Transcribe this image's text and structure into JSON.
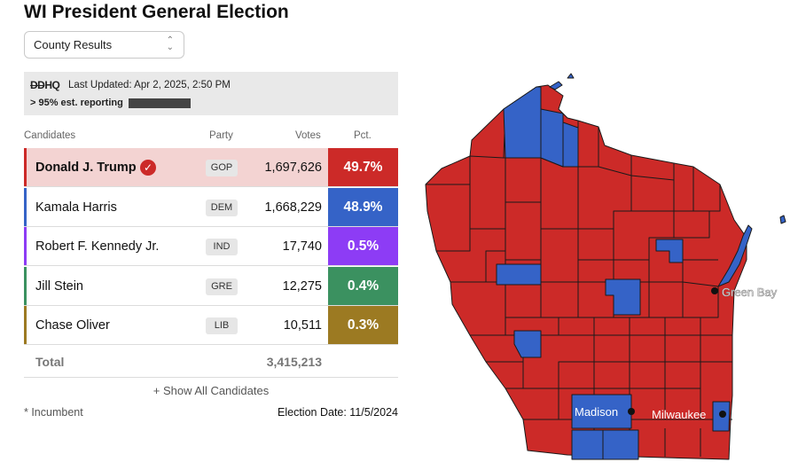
{
  "title": "WI President General Election",
  "view_select": {
    "value": "County Results"
  },
  "banner": {
    "logo": "DDHQ",
    "logo_strike": "DD",
    "logo_rest": "HQ",
    "updated": "Last Updated: Apr 2, 2025, 2:50 PM",
    "reporting": "> 95% est. reporting"
  },
  "table": {
    "headers": {
      "candidates": "Candidates",
      "party": "Party",
      "votes": "Votes",
      "pct": "Pct."
    },
    "rows": [
      {
        "name": "Donald J. Trump",
        "party": "GOP",
        "votes": "1,697,626",
        "pct": "49.7%",
        "color": "#cc2a28",
        "bg": "#f3d3d2",
        "winner": true
      },
      {
        "name": "Kamala Harris",
        "party": "DEM",
        "votes": "1,668,229",
        "pct": "48.9%",
        "color": "#3563c7",
        "bg": "#ffffff",
        "winner": false
      },
      {
        "name": "Robert F. Kennedy Jr.",
        "party": "IND",
        "votes": "17,740",
        "pct": "0.5%",
        "color": "#8d3cf5",
        "bg": "#ffffff",
        "winner": false
      },
      {
        "name": "Jill Stein",
        "party": "GRE",
        "votes": "12,275",
        "pct": "0.4%",
        "color": "#3b9160",
        "bg": "#ffffff",
        "winner": false
      },
      {
        "name": "Chase Oliver",
        "party": "LIB",
        "votes": "10,511",
        "pct": "0.3%",
        "color": "#9c7a22",
        "bg": "#ffffff",
        "winner": false
      }
    ],
    "total_label": "Total",
    "total_votes": "3,415,213"
  },
  "show_all": "+ Show All Candidates",
  "footer": {
    "incumbent": "* Incumbent",
    "election_date": "Election Date: 11/5/2024"
  },
  "map": {
    "colors": {
      "rep": "#cc2a28",
      "dem": "#3563c7"
    },
    "cities": {
      "green_bay": "Green Bay",
      "madison": "Madison",
      "milwaukee": "Milwaukee"
    }
  }
}
